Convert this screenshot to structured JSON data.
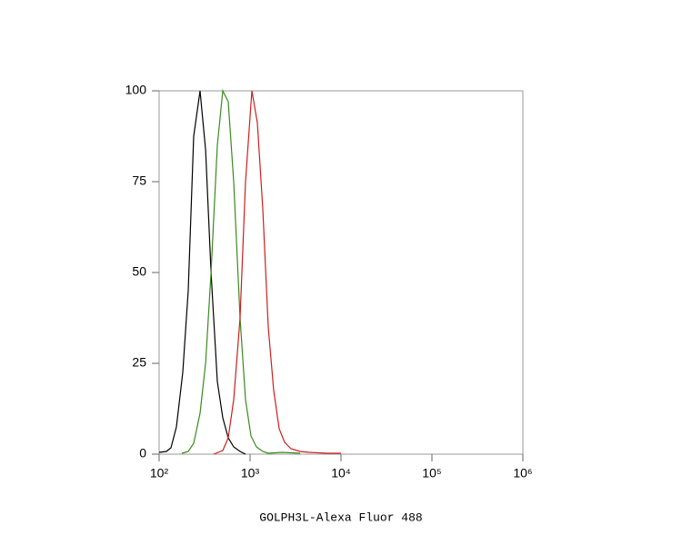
{
  "chart_data": {
    "type": "line",
    "xlabel": "GOLPH3L-Alexa Fluor 488",
    "xscale": "log",
    "xlim": [
      100,
      1000000
    ],
    "ylim": [
      0,
      100
    ],
    "xticks": [
      {
        "value": 100,
        "label": "10²"
      },
      {
        "value": 1000,
        "label": "10³"
      },
      {
        "value": 10000,
        "label": "10⁴"
      },
      {
        "value": 100000,
        "label": "10⁵"
      },
      {
        "value": 1000000,
        "label": "10⁶"
      }
    ],
    "yticks": [
      0,
      25,
      50,
      75,
      100
    ],
    "series": [
      {
        "color": "#000000",
        "x": [
          100,
          120,
          135,
          155,
          182,
          209,
          240,
          282,
          324,
          372,
          437,
          501,
          575,
          661,
          776,
          891
        ],
        "values": [
          0.5,
          0.75,
          1.75,
          7.5,
          22.5,
          45,
          87.5,
          100,
          83.75,
          50,
          20,
          10,
          4.5,
          2,
          0.75,
          0
        ]
      },
      {
        "color": "#3a8a1e",
        "x": [
          178,
          209,
          240,
          282,
          324,
          372,
          437,
          501,
          575,
          661,
          776,
          891,
          1023,
          1175,
          1380,
          1585,
          2239,
          3548
        ],
        "values": [
          0.25,
          0.75,
          3,
          11.25,
          25,
          50,
          85,
          100,
          97,
          75,
          37.5,
          15,
          5,
          2,
          0.75,
          0.25,
          0.5,
          0.25
        ]
      },
      {
        "color": "#cc1f1f",
        "x": [
          398,
          501,
          575,
          661,
          776,
          891,
          1047,
          1202,
          1380,
          1585,
          1820,
          2089,
          2399,
          2818,
          3548,
          4467,
          7079,
          10000
        ],
        "values": [
          0,
          1,
          4.5,
          15,
          37.5,
          75,
          100,
          91.25,
          67.5,
          35,
          17.5,
          7,
          3.25,
          1.5,
          0.75,
          0.5,
          0.25,
          0.25
        ]
      }
    ]
  }
}
